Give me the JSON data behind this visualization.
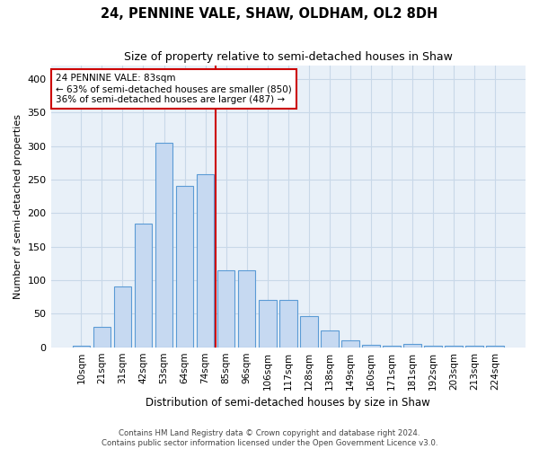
{
  "title": "24, PENNINE VALE, SHAW, OLDHAM, OL2 8DH",
  "subtitle": "Size of property relative to semi-detached houses in Shaw",
  "xlabel": "Distribution of semi-detached houses by size in Shaw",
  "ylabel": "Number of semi-detached properties",
  "categories": [
    "10sqm",
    "21sqm",
    "31sqm",
    "42sqm",
    "53sqm",
    "64sqm",
    "74sqm",
    "85sqm",
    "96sqm",
    "106sqm",
    "117sqm",
    "128sqm",
    "138sqm",
    "149sqm",
    "160sqm",
    "171sqm",
    "181sqm",
    "192sqm",
    "203sqm",
    "213sqm",
    "224sqm"
  ],
  "values": [
    2,
    30,
    90,
    185,
    305,
    240,
    258,
    115,
    115,
    70,
    70,
    47,
    25,
    10,
    3,
    2,
    5,
    2,
    2,
    2,
    2
  ],
  "bar_color": "#c6d9f1",
  "bar_edge_color": "#5b9bd5",
  "vline_color": "#cc0000",
  "annotation_text": "24 PENNINE VALE: 83sqm\n← 63% of semi-detached houses are smaller (850)\n36% of semi-detached houses are larger (487) →",
  "annotation_box_color": "#ffffff",
  "annotation_box_edge": "#cc0000",
  "ylim": [
    0,
    420
  ],
  "yticks": [
    0,
    50,
    100,
    150,
    200,
    250,
    300,
    350,
    400
  ],
  "grid_color": "#c8d8e8",
  "background_color": "#e8f0f8",
  "footer_line1": "Contains HM Land Registry data © Crown copyright and database right 2024.",
  "footer_line2": "Contains public sector information licensed under the Open Government Licence v3.0."
}
